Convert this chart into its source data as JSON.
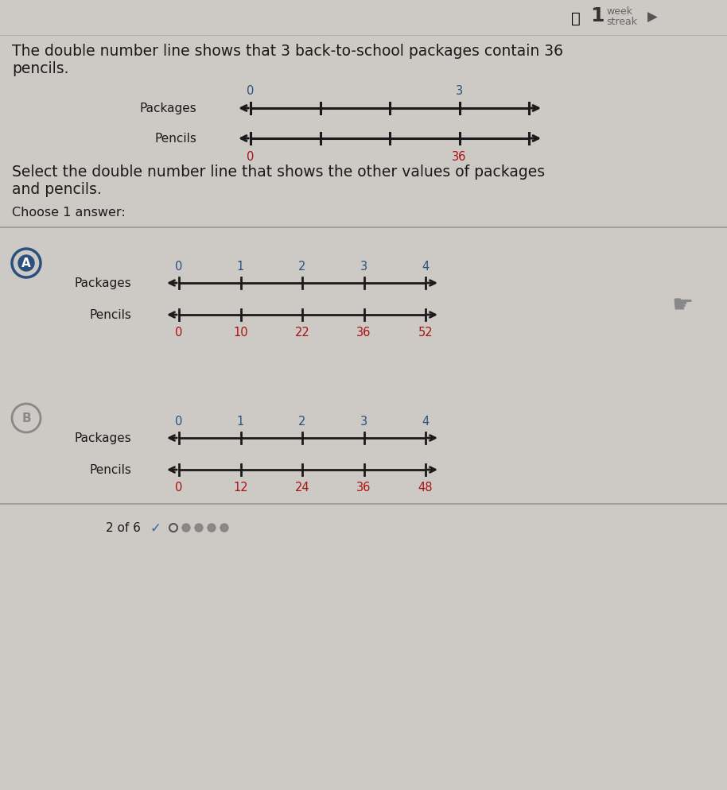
{
  "bg_color": "#cdc9c5",
  "title_line1": "The double number line shows that 3 back-to-school packages contain 36",
  "title_line2": "pencils.",
  "select_line1": "Select the double number line that shows the other values of packages",
  "select_line2": "and pencils.",
  "choose_text": "Choose 1 answer:",
  "streak_num": "1",
  "intro_pkg_label": "Packages",
  "intro_pen_label": "Pencils",
  "intro_pkg_nums": [
    "0",
    "",
    "",
    "3",
    ""
  ],
  "intro_pen_nums": [
    "0",
    "",
    "",
    "36",
    ""
  ],
  "intro_pkg_color": "#2a5080",
  "intro_pen_color": "#aa1111",
  "opt_a_pkg_nums": [
    "0",
    "1",
    "2",
    "3",
    "4"
  ],
  "opt_a_pen_nums": [
    "0",
    "10",
    "22",
    "36",
    "52"
  ],
  "opt_b_pkg_nums": [
    "0",
    "1",
    "2",
    "3",
    "4"
  ],
  "opt_b_pen_nums": [
    "0",
    "12",
    "24",
    "36",
    "48"
  ],
  "pkg_num_color": "#2a5080",
  "pen_num_color": "#aa1111",
  "line_color": "#1a1a1a",
  "label_color": "#1a1a1a",
  "divider_color": "#999999",
  "circle_a_color": "#2a5080",
  "circle_b_color": "#888888",
  "bottom_text": "2 of 6",
  "text_color": "#1a1a1a",
  "streak_color": "#333333",
  "streak_sub_color": "#666666"
}
